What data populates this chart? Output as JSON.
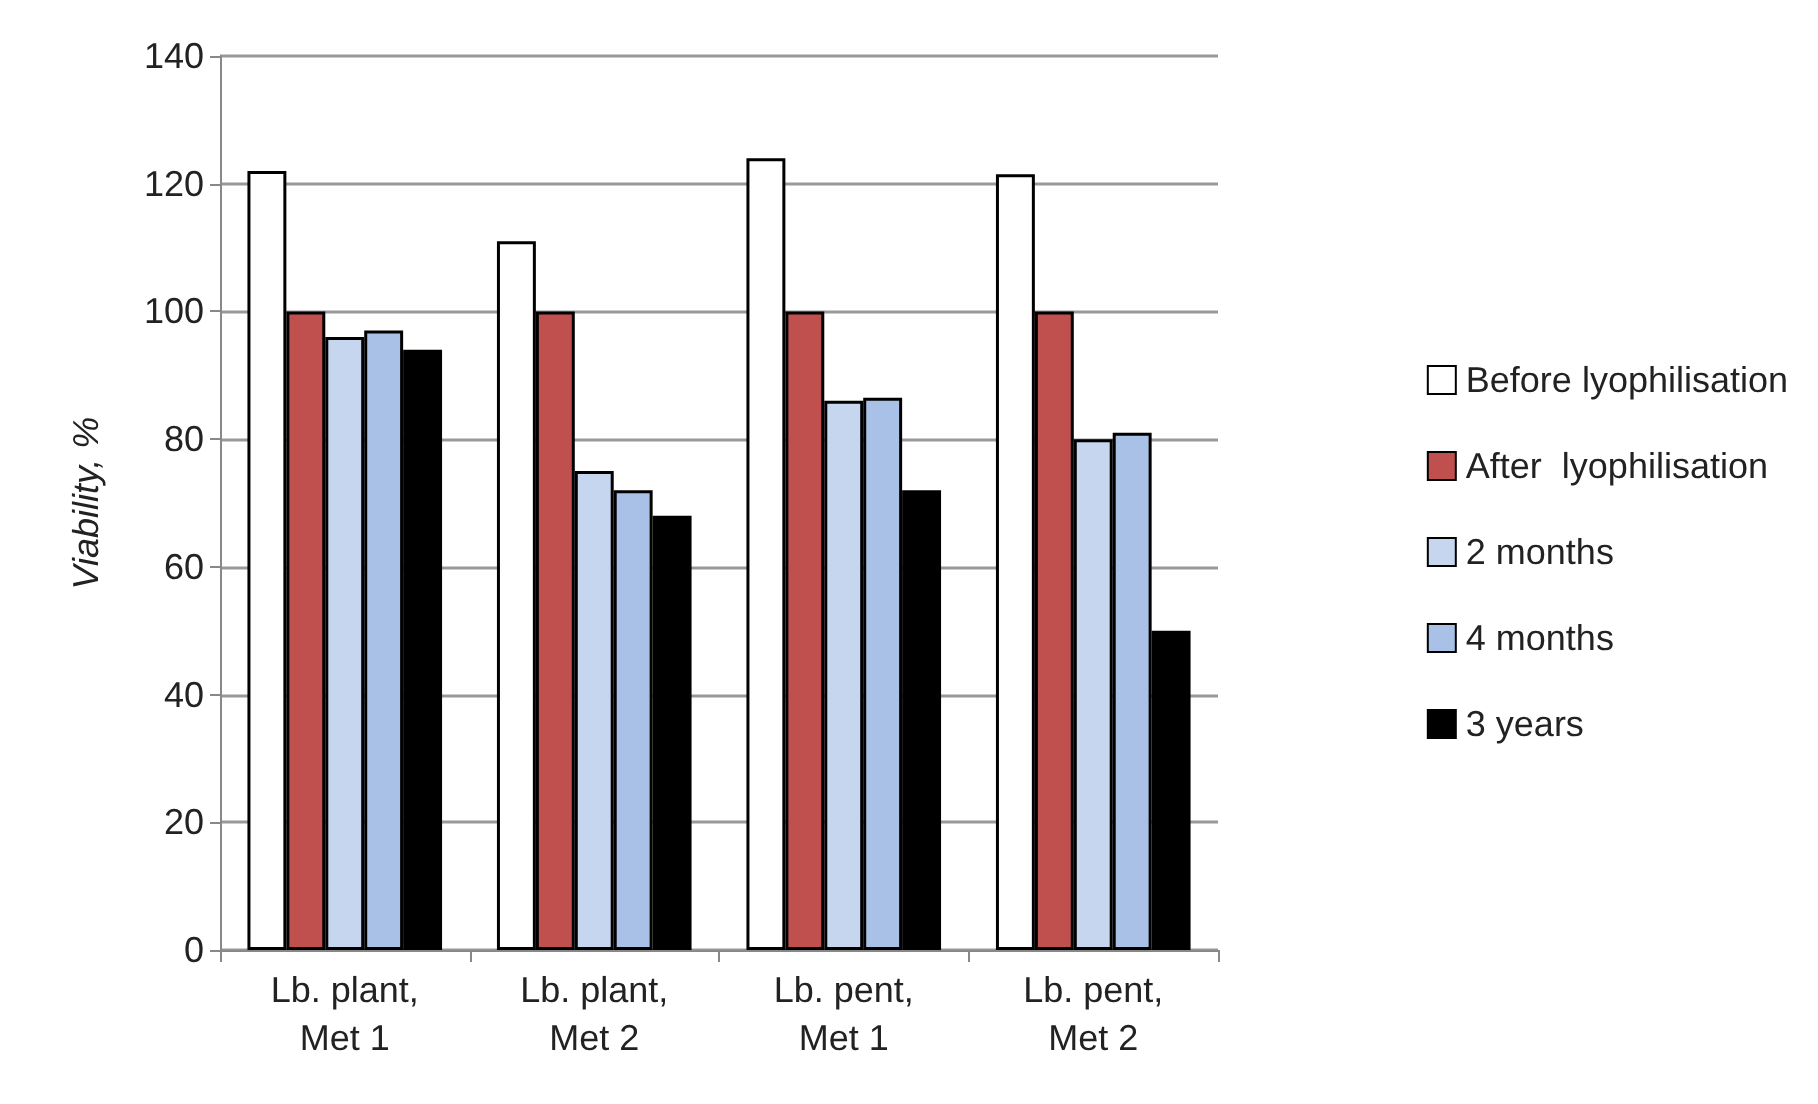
{
  "chart_data": {
    "type": "bar",
    "ylabel": "Viability, %",
    "categories": [
      "Lb. plant,\nMet 1",
      "Lb. plant,\nMet 2",
      "Lb. pent,\nMet 1",
      "Lb. pent,\nMet 2"
    ],
    "series": [
      {
        "name": "Before lyophilisation",
        "color": "#ffffff",
        "values": [
          122,
          111,
          124,
          121.5
        ]
      },
      {
        "name": "After  lyophilisation",
        "color": "#c0504d",
        "values": [
          100,
          100,
          100,
          100
        ]
      },
      {
        "name": "2 months",
        "color": "#c6d6ee",
        "values": [
          96,
          75,
          86,
          80
        ]
      },
      {
        "name": "4 months",
        "color": "#a9c1e6",
        "values": [
          97,
          72,
          86.5,
          81
        ]
      },
      {
        "name": "3 years",
        "color": "#000000",
        "values": [
          94,
          68,
          72,
          50
        ]
      }
    ],
    "ylim": [
      0,
      140
    ],
    "yticks": [
      0,
      20,
      40,
      60,
      80,
      100,
      120,
      140
    ],
    "grid": "y",
    "legend": "right"
  }
}
